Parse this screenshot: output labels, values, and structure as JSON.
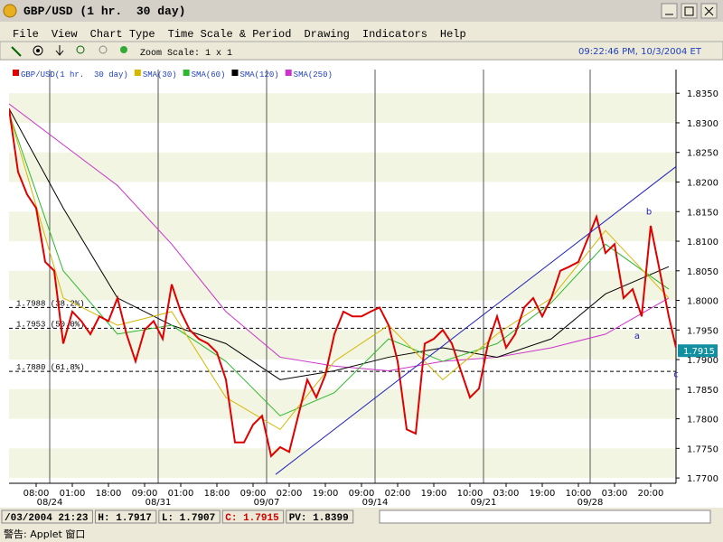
{
  "window": {
    "title": "GBP/USD (1 hr.  30 day)"
  },
  "menu": [
    "File",
    "View",
    "Chart Type",
    "Time Scale & Period",
    "Drawing",
    "Indicators",
    "Help"
  ],
  "toolbar": {
    "zoom": "Zoom Scale: 1 x 1",
    "clock": "09:22:46 PM, 10/3/2004 ET"
  },
  "chart_data": {
    "type": "line",
    "xlim": [
      0,
      738
    ],
    "ylim": [
      1.7691,
      1.839
    ],
    "yticks": [
      {
        "value": 1.77,
        "label": "1.7700"
      },
      {
        "value": 1.775,
        "label": "1.7750"
      },
      {
        "value": 1.78,
        "label": "1.7800"
      },
      {
        "value": 1.785,
        "label": "1.7850"
      },
      {
        "value": 1.79,
        "label": "1.7900"
      },
      {
        "value": 1.795,
        "label": "1.7950"
      },
      {
        "value": 1.8,
        "label": "1.8000"
      },
      {
        "value": 1.805,
        "label": "1.8050"
      },
      {
        "value": 1.81,
        "label": "1.8100"
      },
      {
        "value": 1.815,
        "label": "1.8150"
      },
      {
        "value": 1.82,
        "label": "1.8200"
      },
      {
        "value": 1.825,
        "label": "1.8250"
      },
      {
        "value": 1.83,
        "label": "1.8300"
      },
      {
        "value": 1.835,
        "label": "1.8350"
      }
    ],
    "xticks": [
      {
        "value": 30,
        "label": "08:00"
      },
      {
        "value": 70,
        "label": "01:00"
      },
      {
        "value": 110,
        "label": "18:00"
      },
      {
        "value": 150,
        "label": "09:00"
      },
      {
        "value": 190,
        "label": "01:00"
      },
      {
        "value": 230,
        "label": "18:00"
      },
      {
        "value": 270,
        "label": "09:00"
      },
      {
        "value": 310,
        "label": "02:00"
      },
      {
        "value": 350,
        "label": "19:00"
      },
      {
        "value": 390,
        "label": "09:00"
      },
      {
        "value": 430,
        "label": "02:00"
      },
      {
        "value": 470,
        "label": "19:00"
      },
      {
        "value": 510,
        "label": "10:00"
      },
      {
        "value": 550,
        "label": "03:00"
      },
      {
        "value": 590,
        "label": "19:00"
      },
      {
        "value": 630,
        "label": "10:00"
      },
      {
        "value": 670,
        "label": "03:00"
      },
      {
        "value": 710,
        "label": "20:00"
      }
    ],
    "date_ticks": [
      {
        "value": 45,
        "label": "08/24"
      },
      {
        "value": 165,
        "label": "08/31"
      },
      {
        "value": 285,
        "label": "09/07"
      },
      {
        "value": 405,
        "label": "09/14"
      },
      {
        "value": 525,
        "label": "09/21"
      },
      {
        "value": 643,
        "label": "09/28"
      }
    ],
    "series": [
      {
        "name": "GBP/USD(1 hr.  30 day)",
        "color": "#e00000",
        "x": [
          0,
          10,
          20,
          30,
          40,
          50,
          60,
          70,
          80,
          90,
          100,
          110,
          120,
          130,
          140,
          150,
          160,
          170,
          180,
          190,
          200,
          210,
          220,
          230,
          240,
          250,
          260,
          270,
          280,
          290,
          300,
          310,
          320,
          330,
          340,
          350,
          360,
          370,
          380,
          390,
          400,
          410,
          420,
          430,
          440,
          450,
          460,
          470,
          480,
          490,
          500,
          510,
          520,
          530,
          540,
          550,
          560,
          570,
          580,
          590,
          600,
          610,
          620,
          630,
          640,
          650,
          660,
          670,
          680,
          690,
          700,
          710,
          720,
          730,
          738
        ],
        "values": [
          1.8324,
          1.8217,
          1.8179,
          1.8156,
          1.8065,
          1.805,
          1.7927,
          1.7981,
          1.7965,
          1.7943,
          1.7973,
          1.7965,
          1.8004,
          1.7943,
          1.7897,
          1.795,
          1.7965,
          1.7935,
          1.8027,
          1.7981,
          1.795,
          1.7935,
          1.7927,
          1.7912,
          1.7866,
          1.776,
          1.776,
          1.779,
          1.7805,
          1.7737,
          1.7752,
          1.7744,
          1.7805,
          1.7866,
          1.7836,
          1.7874,
          1.7943,
          1.7981,
          1.7973,
          1.7973,
          1.7981,
          1.7988,
          1.7958,
          1.7897,
          1.7782,
          1.7775,
          1.7927,
          1.7935,
          1.795,
          1.7927,
          1.7881,
          1.7836,
          1.7851,
          1.7927,
          1.7973,
          1.792,
          1.7943,
          1.7988,
          1.8004,
          1.7973,
          1.8004,
          1.805,
          1.8057,
          1.8065,
          1.8103,
          1.8141,
          1.808,
          1.8095,
          1.8004,
          1.8019,
          1.7973,
          1.8126,
          1.805,
          1.7973,
          1.792
        ]
      },
      {
        "name": "SMA(30)",
        "color": "#d4b800",
        "x": [
          0,
          60,
          120,
          180,
          240,
          300,
          360,
          420,
          480,
          540,
          600,
          660,
          730
        ],
        "values": [
          1.8316,
          1.8004,
          1.7958,
          1.7981,
          1.7836,
          1.7782,
          1.7897,
          1.7958,
          1.7866,
          1.7943,
          1.8004,
          1.8118,
          1.8004
        ]
      },
      {
        "name": "SMA(60)",
        "color": "#2db82d",
        "x": [
          0,
          60,
          120,
          180,
          240,
          300,
          360,
          420,
          480,
          540,
          600,
          660,
          730
        ],
        "values": [
          1.8316,
          1.805,
          1.7943,
          1.7958,
          1.7897,
          1.7805,
          1.7844,
          1.7935,
          1.7897,
          1.7927,
          1.7996,
          1.8095,
          1.8019
        ]
      },
      {
        "name": "SMA(120)",
        "color": "#000000",
        "x": [
          0,
          60,
          120,
          180,
          240,
          300,
          360,
          420,
          480,
          540,
          600,
          660,
          730
        ],
        "values": [
          1.8324,
          1.8156,
          1.8004,
          1.7958,
          1.7927,
          1.7866,
          1.7881,
          1.7904,
          1.792,
          1.7904,
          1.7935,
          1.8011,
          1.8057
        ]
      },
      {
        "name": "SMA(250)",
        "color": "#cc33cc",
        "x": [
          0,
          60,
          120,
          180,
          240,
          300,
          360,
          420,
          480,
          540,
          600,
          660,
          730
        ],
        "values": [
          1.8332,
          1.8263,
          1.8194,
          1.8095,
          1.7981,
          1.7904,
          1.7889,
          1.7881,
          1.7897,
          1.7904,
          1.792,
          1.7943,
          1.8004
        ]
      }
    ],
    "trendline": {
      "color": "#2020c0",
      "x": [
        295,
        738
      ],
      "values": [
        1.7706,
        1.8226
      ]
    },
    "fib_levels": [
      {
        "value": 1.7988,
        "label": "1.7988 (38.2%)"
      },
      {
        "value": 1.7953,
        "label": "1.7953 (50.0%)"
      },
      {
        "value": 1.788,
        "label": "1.7880 (61.8%)"
      }
    ],
    "wave_labels": [
      {
        "x": 695,
        "value": 1.7935,
        "label": "a"
      },
      {
        "x": 708,
        "value": 1.8145,
        "label": "b"
      },
      {
        "x": 738,
        "value": 1.787,
        "label": "c"
      }
    ],
    "last_price": {
      "value": 1.7915,
      "label": "1.7915"
    }
  },
  "status": [
    "/03/2004 21:23",
    "H: 1.7917",
    "L: 1.7907",
    "C: 1.7915",
    "PV: 1.8399"
  ],
  "warning": "警告: Applet 窗口"
}
